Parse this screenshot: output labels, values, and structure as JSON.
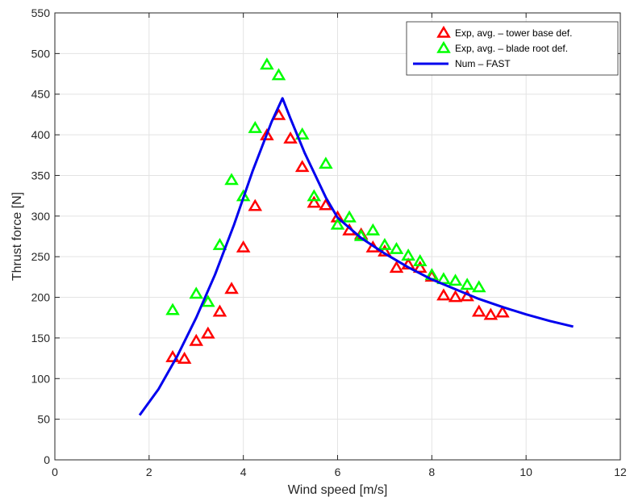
{
  "chart_data": {
    "type": "scatter",
    "title": "",
    "xlabel": "Wind speed [m/s]",
    "ylabel": "Thrust force [N]",
    "xlim": [
      0,
      12
    ],
    "ylim": [
      0,
      550
    ],
    "xticks": [
      0,
      2,
      4,
      6,
      8,
      10,
      12
    ],
    "yticks": [
      0,
      50,
      100,
      150,
      200,
      250,
      300,
      350,
      400,
      450,
      500,
      550
    ],
    "xtick_labels": [
      "0",
      "2",
      "4",
      "6",
      "8",
      "10",
      "12"
    ],
    "ytick_labels": [
      "0",
      "50",
      "100",
      "150",
      "200",
      "250",
      "300",
      "350",
      "400",
      "450",
      "500",
      "550"
    ],
    "grid": true,
    "legend_position": "top-right",
    "series": [
      {
        "name": "Exp, avg. – tower base def.",
        "kind": "marker",
        "marker": "triangle",
        "color": "#ff0000",
        "x": [
          2.5,
          2.75,
          3.0,
          3.25,
          3.5,
          3.75,
          4.0,
          4.25,
          4.5,
          4.75,
          5.0,
          5.25,
          5.5,
          5.75,
          6.0,
          6.25,
          6.5,
          6.75,
          7.0,
          7.25,
          7.5,
          7.75,
          8.0,
          8.25,
          8.5,
          8.75,
          9.0,
          9.25,
          9.5
        ],
        "y": [
          126,
          124,
          146,
          155,
          182,
          210,
          261,
          312,
          399,
          424,
          395,
          360,
          316,
          313,
          298,
          282,
          277,
          261,
          256,
          236,
          240,
          236,
          225,
          202,
          200,
          201,
          182,
          178,
          181
        ]
      },
      {
        "name": "Exp, avg. – blade root def.",
        "kind": "marker",
        "marker": "triangle",
        "color": "#00ff00",
        "x": [
          2.5,
          3.0,
          3.25,
          3.5,
          3.75,
          4.0,
          4.25,
          4.5,
          4.75,
          5.25,
          5.5,
          5.75,
          6.0,
          6.25,
          6.5,
          6.75,
          7.0,
          7.25,
          7.5,
          7.75,
          8.0,
          8.25,
          8.5,
          8.75,
          9.0
        ],
        "y": [
          184,
          204,
          194,
          264,
          344,
          324,
          408,
          486,
          473,
          400,
          324,
          364,
          289,
          298,
          275,
          282,
          264,
          259,
          251,
          244,
          227,
          222,
          220,
          215,
          212
        ]
      },
      {
        "name": "Num – FAST",
        "kind": "line",
        "color": "#0000ee",
        "x": [
          1.8,
          2.2,
          2.6,
          3.0,
          3.4,
          3.8,
          4.2,
          4.6,
          4.83,
          5.0,
          5.3,
          5.75,
          6.0,
          6.5,
          7.0,
          7.5,
          8.0,
          8.5,
          9.0,
          9.5,
          10.0,
          10.5,
          11.0
        ],
        "y": [
          55,
          87,
          128,
          175,
          228,
          289,
          356,
          416,
          445,
          420,
          378,
          323,
          298,
          273,
          254,
          237,
          222,
          210,
          198,
          188,
          179,
          171,
          164
        ]
      }
    ]
  }
}
